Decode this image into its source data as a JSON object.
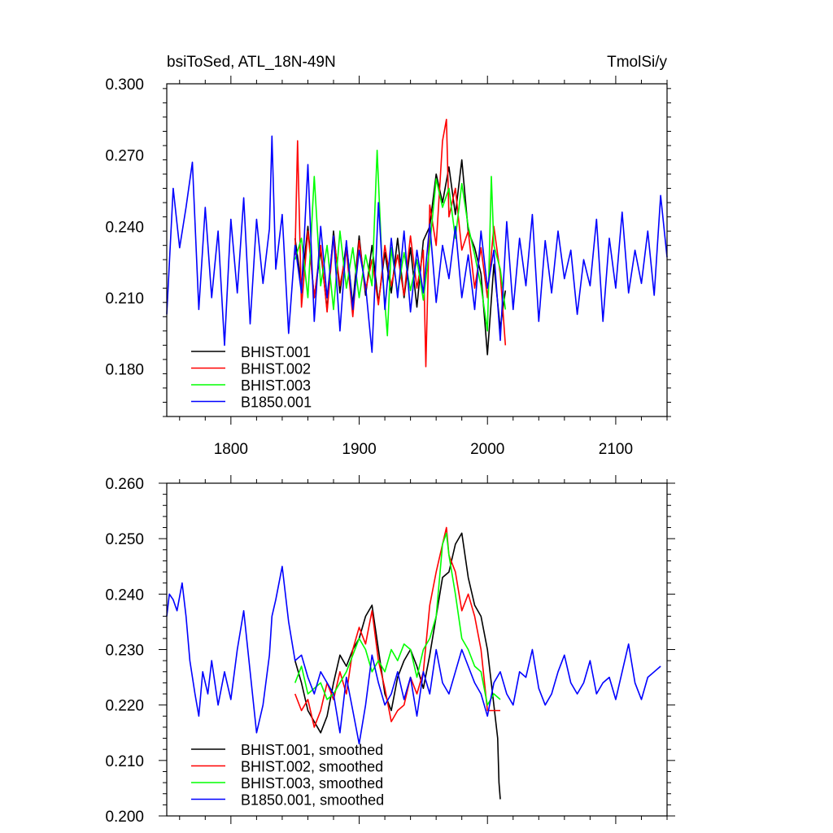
{
  "chart_data": [
    {
      "type": "line",
      "title_left": "bsiToSed, ATL_18N-49N",
      "title_right": "TmolSi/y",
      "xlim": [
        1750,
        2140
      ],
      "ylim": [
        0.16,
        0.3
      ],
      "xticks": [
        1800,
        1900,
        2000,
        2100
      ],
      "xtick_labels": [
        "1800",
        "1900",
        "2000",
        "2100"
      ],
      "yticks": [
        0.18,
        0.21,
        0.24,
        0.27,
        0.3
      ],
      "ytick_labels": [
        "0.180",
        "0.210",
        "0.240",
        "0.270",
        "0.300"
      ],
      "grid": false,
      "legend_position": "bottom-left",
      "series": [
        {
          "name": "BHIST.001",
          "color": "#000000",
          "x": [
            1850,
            1855,
            1860,
            1865,
            1870,
            1875,
            1880,
            1885,
            1890,
            1895,
            1900,
            1905,
            1910,
            1915,
            1920,
            1925,
            1930,
            1935,
            1940,
            1945,
            1950,
            1955,
            1960,
            1965,
            1970,
            1975,
            1980,
            1985,
            1990,
            1995,
            2000,
            2005,
            2010,
            2014
          ],
          "y": [
            0.235,
            0.215,
            0.24,
            0.21,
            0.23,
            0.205,
            0.238,
            0.212,
            0.233,
            0.207,
            0.236,
            0.211,
            0.232,
            0.208,
            0.229,
            0.212,
            0.235,
            0.21,
            0.231,
            0.206,
            0.234,
            0.24,
            0.262,
            0.25,
            0.265,
            0.245,
            0.268,
            0.238,
            0.231,
            0.22,
            0.186,
            0.224,
            0.197,
            0.213
          ]
        },
        {
          "name": "BHIST.002",
          "color": "#ff0000",
          "x": [
            1850,
            1852,
            1855,
            1860,
            1865,
            1870,
            1875,
            1880,
            1885,
            1890,
            1895,
            1900,
            1905,
            1910,
            1915,
            1920,
            1925,
            1930,
            1935,
            1940,
            1945,
            1950,
            1952,
            1955,
            1960,
            1965,
            1968,
            1970,
            1975,
            1980,
            1985,
            1990,
            1995,
            2000,
            2005,
            2010,
            2014
          ],
          "y": [
            0.228,
            0.276,
            0.206,
            0.238,
            0.21,
            0.232,
            0.204,
            0.236,
            0.215,
            0.23,
            0.202,
            0.234,
            0.213,
            0.226,
            0.207,
            0.232,
            0.215,
            0.228,
            0.211,
            0.236,
            0.214,
            0.23,
            0.181,
            0.249,
            0.232,
            0.276,
            0.285,
            0.244,
            0.256,
            0.23,
            0.238,
            0.214,
            0.231,
            0.21,
            0.24,
            0.22,
            0.19
          ]
        },
        {
          "name": "BHIST.003",
          "color": "#00ff00",
          "x": [
            1850,
            1855,
            1860,
            1865,
            1870,
            1875,
            1880,
            1885,
            1890,
            1895,
            1900,
            1905,
            1910,
            1914,
            1918,
            1922,
            1925,
            1930,
            1935,
            1940,
            1945,
            1950,
            1955,
            1960,
            1965,
            1970,
            1975,
            1980,
            1985,
            1990,
            1995,
            2000,
            2003,
            2005,
            2010,
            2014
          ],
          "y": [
            0.226,
            0.235,
            0.21,
            0.261,
            0.215,
            0.232,
            0.205,
            0.238,
            0.214,
            0.231,
            0.21,
            0.228,
            0.215,
            0.272,
            0.222,
            0.194,
            0.231,
            0.212,
            0.229,
            0.213,
            0.226,
            0.209,
            0.232,
            0.26,
            0.248,
            0.256,
            0.235,
            0.258,
            0.24,
            0.228,
            0.215,
            0.196,
            0.261,
            0.232,
            0.222,
            0.205
          ]
        },
        {
          "name": "B1850.001",
          "color": "#0000ff",
          "x": [
            1750,
            1755,
            1760,
            1765,
            1770,
            1775,
            1780,
            1785,
            1790,
            1795,
            1800,
            1805,
            1810,
            1815,
            1820,
            1825,
            1830,
            1832,
            1835,
            1840,
            1845,
            1850,
            1855,
            1860,
            1865,
            1870,
            1875,
            1880,
            1885,
            1890,
            1895,
            1900,
            1905,
            1910,
            1915,
            1920,
            1925,
            1930,
            1935,
            1940,
            1945,
            1950,
            1955,
            1960,
            1965,
            1970,
            1975,
            1980,
            1985,
            1990,
            1995,
            2000,
            2005,
            2010,
            2015,
            2020,
            2025,
            2030,
            2035,
            2040,
            2045,
            2050,
            2055,
            2060,
            2065,
            2070,
            2075,
            2080,
            2085,
            2090,
            2095,
            2100,
            2105,
            2110,
            2115,
            2120,
            2125,
            2130,
            2135,
            2140
          ],
          "y": [
            0.203,
            0.256,
            0.231,
            0.248,
            0.267,
            0.205,
            0.248,
            0.21,
            0.238,
            0.19,
            0.243,
            0.212,
            0.252,
            0.199,
            0.243,
            0.216,
            0.239,
            0.278,
            0.222,
            0.245,
            0.195,
            0.232,
            0.212,
            0.266,
            0.2,
            0.24,
            0.21,
            0.236,
            0.196,
            0.234,
            0.205,
            0.23,
            0.215,
            0.187,
            0.25,
            0.205,
            0.235,
            0.21,
            0.238,
            0.204,
            0.23,
            0.212,
            0.241,
            0.208,
            0.232,
            0.218,
            0.24,
            0.21,
            0.228,
            0.205,
            0.238,
            0.214,
            0.23,
            0.192,
            0.242,
            0.205,
            0.235,
            0.215,
            0.245,
            0.2,
            0.234,
            0.212,
            0.238,
            0.218,
            0.23,
            0.203,
            0.226,
            0.215,
            0.243,
            0.2,
            0.235,
            0.214,
            0.246,
            0.212,
            0.23,
            0.216,
            0.238,
            0.211,
            0.253,
            0.227
          ]
        }
      ],
      "legend": [
        {
          "label": "BHIST.001",
          "color": "#000000"
        },
        {
          "label": "BHIST.002",
          "color": "#ff0000"
        },
        {
          "label": "BHIST.003",
          "color": "#00ff00"
        },
        {
          "label": "B1850.001",
          "color": "#0000ff"
        }
      ]
    },
    {
      "type": "line",
      "xlim": [
        1750,
        2140
      ],
      "ylim": [
        0.2,
        0.26
      ],
      "xticks": [
        1800,
        1900,
        2000,
        2100
      ],
      "yticks": [
        0.2,
        0.21,
        0.22,
        0.23,
        0.24,
        0.25,
        0.26
      ],
      "ytick_labels": [
        "0.200",
        "0.210",
        "0.220",
        "0.230",
        "0.240",
        "0.250",
        "0.260"
      ],
      "grid": false,
      "legend_position": "bottom-left",
      "series": [
        {
          "name": "BHIST.001, smoothed",
          "color": "#000000",
          "x": [
            1850,
            1855,
            1860,
            1865,
            1870,
            1875,
            1880,
            1885,
            1890,
            1895,
            1900,
            1905,
            1910,
            1915,
            1920,
            1925,
            1930,
            1935,
            1940,
            1945,
            1950,
            1955,
            1960,
            1965,
            1970,
            1975,
            1980,
            1985,
            1990,
            1995,
            2000,
            2005,
            2008,
            2009,
            2010
          ],
          "y": [
            0.228,
            0.224,
            0.219,
            0.217,
            0.215,
            0.218,
            0.224,
            0.229,
            0.227,
            0.23,
            0.232,
            0.236,
            0.238,
            0.23,
            0.222,
            0.219,
            0.225,
            0.228,
            0.23,
            0.227,
            0.223,
            0.229,
            0.236,
            0.243,
            0.244,
            0.249,
            0.251,
            0.243,
            0.238,
            0.236,
            0.23,
            0.22,
            0.214,
            0.206,
            0.203
          ]
        },
        {
          "name": "BHIST.002, smoothed",
          "color": "#ff0000",
          "x": [
            1850,
            1855,
            1860,
            1865,
            1870,
            1875,
            1880,
            1885,
            1890,
            1895,
            1900,
            1905,
            1910,
            1915,
            1920,
            1925,
            1930,
            1935,
            1940,
            1945,
            1950,
            1955,
            1960,
            1965,
            1968,
            1970,
            1975,
            1980,
            1985,
            1990,
            1995,
            2000,
            2005,
            2010
          ],
          "y": [
            0.222,
            0.219,
            0.221,
            0.216,
            0.219,
            0.224,
            0.221,
            0.226,
            0.222,
            0.23,
            0.234,
            0.231,
            0.237,
            0.228,
            0.223,
            0.217,
            0.219,
            0.22,
            0.225,
            0.222,
            0.226,
            0.238,
            0.244,
            0.249,
            0.252,
            0.247,
            0.244,
            0.237,
            0.24,
            0.236,
            0.23,
            0.219,
            0.219,
            0.219
          ]
        },
        {
          "name": "BHIST.003, smoothed",
          "color": "#00ff00",
          "x": [
            1850,
            1855,
            1860,
            1865,
            1870,
            1875,
            1880,
            1885,
            1890,
            1895,
            1900,
            1905,
            1910,
            1915,
            1920,
            1925,
            1930,
            1935,
            1940,
            1945,
            1950,
            1955,
            1960,
            1965,
            1968,
            1970,
            1975,
            1980,
            1985,
            1990,
            1995,
            2000,
            2005,
            2010
          ],
          "y": [
            0.224,
            0.227,
            0.222,
            0.223,
            0.224,
            0.221,
            0.222,
            0.224,
            0.226,
            0.229,
            0.232,
            0.23,
            0.226,
            0.228,
            0.226,
            0.23,
            0.228,
            0.231,
            0.23,
            0.225,
            0.23,
            0.232,
            0.236,
            0.249,
            0.251,
            0.247,
            0.24,
            0.232,
            0.23,
            0.227,
            0.226,
            0.22,
            0.222,
            0.221
          ]
        },
        {
          "name": "B1850.001, smoothed",
          "color": "#0000ff",
          "x": [
            1750,
            1752,
            1755,
            1758,
            1762,
            1765,
            1768,
            1772,
            1775,
            1778,
            1782,
            1785,
            1790,
            1795,
            1800,
            1805,
            1810,
            1815,
            1820,
            1825,
            1830,
            1832,
            1835,
            1840,
            1845,
            1850,
            1855,
            1860,
            1865,
            1870,
            1875,
            1880,
            1885,
            1890,
            1895,
            1900,
            1905,
            1910,
            1915,
            1920,
            1925,
            1930,
            1935,
            1940,
            1945,
            1950,
            1955,
            1960,
            1965,
            1970,
            1975,
            1980,
            1985,
            1990,
            1995,
            2000,
            2005,
            2010,
            2015,
            2020,
            2025,
            2030,
            2035,
            2040,
            2045,
            2050,
            2055,
            2060,
            2065,
            2070,
            2075,
            2080,
            2085,
            2090,
            2095,
            2100,
            2105,
            2110,
            2115,
            2120,
            2125,
            2130,
            2135
          ],
          "y": [
            0.236,
            0.24,
            0.239,
            0.237,
            0.242,
            0.236,
            0.228,
            0.222,
            0.218,
            0.226,
            0.222,
            0.228,
            0.22,
            0.226,
            0.221,
            0.23,
            0.237,
            0.226,
            0.215,
            0.22,
            0.229,
            0.236,
            0.239,
            0.245,
            0.235,
            0.228,
            0.229,
            0.225,
            0.222,
            0.226,
            0.224,
            0.222,
            0.215,
            0.225,
            0.219,
            0.213,
            0.22,
            0.229,
            0.224,
            0.22,
            0.222,
            0.226,
            0.221,
            0.225,
            0.218,
            0.226,
            0.222,
            0.23,
            0.224,
            0.222,
            0.226,
            0.23,
            0.227,
            0.224,
            0.222,
            0.218,
            0.224,
            0.226,
            0.222,
            0.22,
            0.226,
            0.225,
            0.23,
            0.223,
            0.22,
            0.222,
            0.226,
            0.229,
            0.224,
            0.222,
            0.224,
            0.228,
            0.222,
            0.224,
            0.225,
            0.221,
            0.226,
            0.231,
            0.224,
            0.221,
            0.225,
            0.226,
            0.227
          ]
        }
      ],
      "legend": [
        {
          "label": "BHIST.001, smoothed",
          "color": "#000000"
        },
        {
          "label": "BHIST.002, smoothed",
          "color": "#ff0000"
        },
        {
          "label": "BHIST.003, smoothed",
          "color": "#00ff00"
        },
        {
          "label": "B1850.001, smoothed",
          "color": "#0000ff"
        }
      ]
    }
  ]
}
